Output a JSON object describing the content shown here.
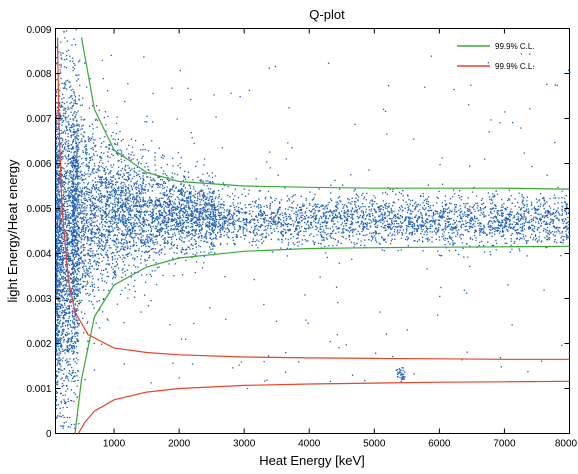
{
  "chart_data": {
    "type": "scatter",
    "title": "Q-plot",
    "xlabel": "Heat Energy [keV]",
    "ylabel": "light Energy/Heat energy",
    "xlim": [
      100,
      8000
    ],
    "ylim": [
      0,
      0.009
    ],
    "x_ticks": [
      1000,
      2000,
      3000,
      4000,
      5000,
      6000,
      7000,
      8000
    ],
    "x_tick_labels": [
      "1000",
      "2000",
      "3000",
      "4000",
      "5000",
      "6000",
      "7000",
      "8000"
    ],
    "y_ticks": [
      0,
      0.001,
      0.002,
      0.003,
      0.004,
      0.005,
      0.006,
      0.007,
      0.008,
      0.009
    ],
    "y_tick_labels": [
      "0",
      "0.001",
      "0.002",
      "0.003",
      "0.004",
      "0.005",
      "0.006",
      "0.007",
      "0.008",
      "0.009"
    ],
    "grid": false,
    "legend_position": "top-right",
    "colors": {
      "points": "#1f5fb4",
      "green": "#3aaa35",
      "red": "#e8442a"
    },
    "scatter_series": {
      "name": "",
      "color": "#1f5fb4",
      "clusters": [
        {
          "x_range": [
            100,
            400
          ],
          "y_center": 0.004,
          "y_spread": 0.0022,
          "density": "very high"
        },
        {
          "x_range": [
            400,
            2500
          ],
          "y_center": 0.0049,
          "y_spread": 0.0004,
          "density": "high"
        },
        {
          "x_range": [
            2500,
            8000
          ],
          "y_center": 0.0047,
          "y_spread": 0.0003,
          "density": "medium"
        },
        {
          "x_range": [
            5350,
            5450
          ],
          "y_center": 0.0013,
          "y_spread": 0.0001,
          "density": "small cluster"
        }
      ]
    },
    "series": [
      {
        "name": "99.9% C.L.",
        "color": "#3aaa35",
        "type": "line",
        "x": [
          500,
          700,
          1000,
          1500,
          2000,
          3000,
          4000,
          5000,
          6000,
          7000,
          8000
        ],
        "y": [
          0.0088,
          0.0072,
          0.0063,
          0.0058,
          0.0056,
          0.0055,
          0.00547,
          0.00545,
          0.00545,
          0.00545,
          0.00543
        ]
      },
      {
        "name": "",
        "color": "#3aaa35",
        "type": "line",
        "x": [
          400,
          500,
          700,
          1000,
          1500,
          2000,
          3000,
          4000,
          5000,
          6000,
          7000,
          8000
        ],
        "y": [
          0.0,
          0.0012,
          0.0026,
          0.0033,
          0.0037,
          0.0039,
          0.00405,
          0.00411,
          0.00413,
          0.00414,
          0.00415,
          0.00416
        ]
      },
      {
        "name": "99.9% C.L.",
        "color": "#e8442a",
        "type": "line",
        "x": [
          130,
          150,
          200,
          300,
          400,
          600,
          1000,
          1500,
          2000,
          3000,
          4000,
          5000,
          6000,
          7000,
          8000
        ],
        "y": [
          0.0088,
          0.007,
          0.005,
          0.0034,
          0.0027,
          0.0022,
          0.0019,
          0.0018,
          0.00175,
          0.0017,
          0.00168,
          0.00167,
          0.00166,
          0.00165,
          0.00165
        ]
      },
      {
        "name": "",
        "color": "#e8442a",
        "type": "line",
        "x": [
          450,
          550,
          700,
          1000,
          1500,
          2000,
          3000,
          4000,
          5000,
          6000,
          7000,
          8000
        ],
        "y": [
          0.0,
          0.00025,
          0.0005,
          0.00075,
          0.00092,
          0.001,
          0.00107,
          0.0011,
          0.00112,
          0.00114,
          0.00115,
          0.00116
        ]
      }
    ],
    "legend": [
      {
        "label": "99.9% C.L.",
        "color": "#3aaa35"
      },
      {
        "label": "99.9% C.L.",
        "color": "#e8442a"
      }
    ]
  }
}
